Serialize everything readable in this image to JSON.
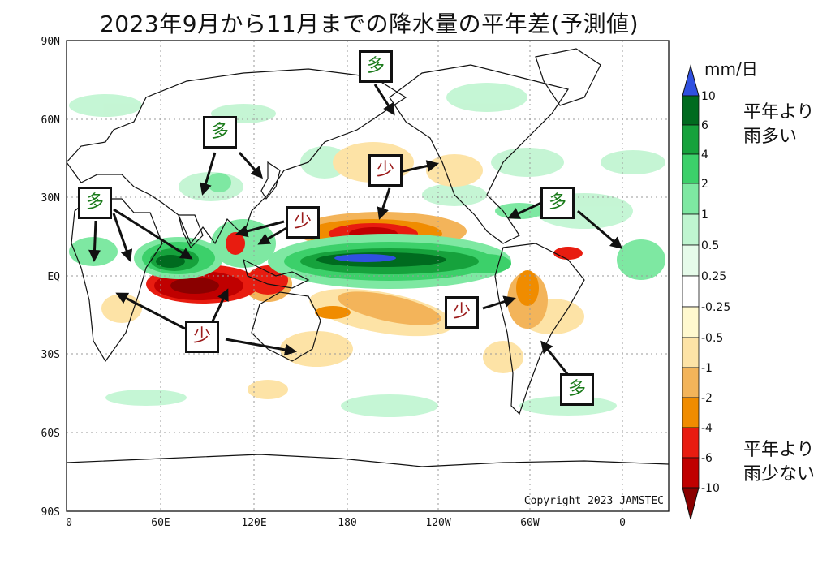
{
  "title": "2023年9月から11月までの降水量の平年差(予測値)",
  "map": {
    "lat_ticks": [
      "90N",
      "60N",
      "30N",
      "EQ",
      "30S",
      "60S",
      "90S"
    ],
    "lon_ticks": [
      "0",
      "60E",
      "120E",
      "180",
      "120W",
      "60W",
      "0"
    ],
    "copyright": "Copyright 2023 JAMSTEC"
  },
  "legend": {
    "unit": "mm/日",
    "levels": [
      "10",
      "6",
      "4",
      "2",
      "1",
      "0.5",
      "0.25",
      "-0.25",
      "-0.5",
      "-1",
      "-2",
      "-4",
      "-6",
      "-10"
    ],
    "colors": [
      "#3050e0",
      "#006b1f",
      "#16a23c",
      "#3cd06a",
      "#7ee8a2",
      "#bff5d0",
      "#e6fbea",
      "#ffffff",
      "#fff9cf",
      "#fde3a6",
      "#f3b45a",
      "#f08c00",
      "#e81c10",
      "#c00000",
      "#8a0000"
    ],
    "top_label": [
      "平年より",
      "雨多い"
    ],
    "bottom_label": [
      "平年より",
      "雨少ない"
    ]
  },
  "labels": {
    "more": "多",
    "less": "少"
  }
}
